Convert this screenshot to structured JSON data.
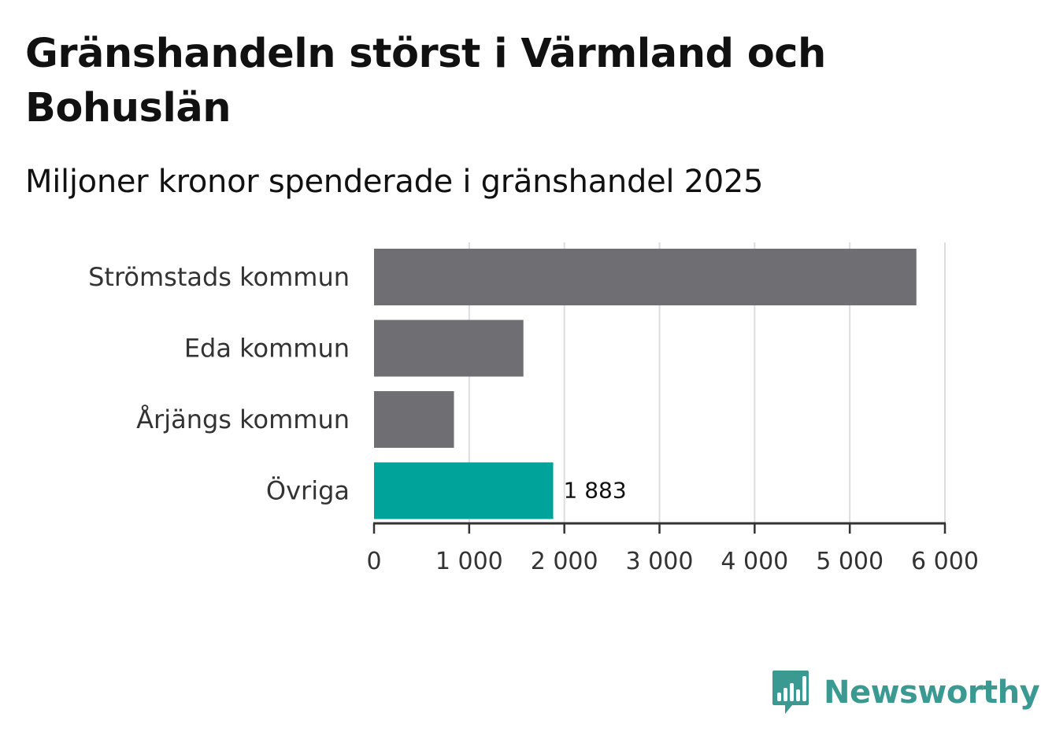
{
  "title": "Gränshandeln störst i Värmland och Bohuslän",
  "subtitle": "Miljoner kronor spenderade i gränshandel 2025",
  "colors": {
    "default_bar": "#6f6e73",
    "highlight_bar": "#00a39a",
    "grid": "#dddddd",
    "axis": "#333333",
    "brand": "#3a9a91"
  },
  "chart_data": {
    "type": "bar",
    "orientation": "horizontal",
    "title": "Gränshandeln störst i Värmland och Bohuslän",
    "subtitle": "Miljoner kronor spenderade i gränshandel 2025",
    "categories": [
      "Strömstads kommun",
      "Eda kommun",
      "Årjängs kommun",
      "Övriga"
    ],
    "values": [
      5700,
      1570,
      840,
      1883
    ],
    "highlight": [
      false,
      false,
      false,
      true
    ],
    "data_labels": [
      "",
      "",
      "",
      "1 883"
    ],
    "xlim": [
      0,
      6000
    ],
    "xticks": [
      0,
      1000,
      2000,
      3000,
      4000,
      5000,
      6000
    ],
    "xtick_labels": [
      "0",
      "1 000",
      "2 000",
      "3 000",
      "4 000",
      "5 000",
      "6 000"
    ],
    "grid": true,
    "xlabel": "",
    "ylabel": ""
  },
  "logo": {
    "text": "Newsworthy",
    "icon": "newsworthy-bar-chart-icon"
  }
}
